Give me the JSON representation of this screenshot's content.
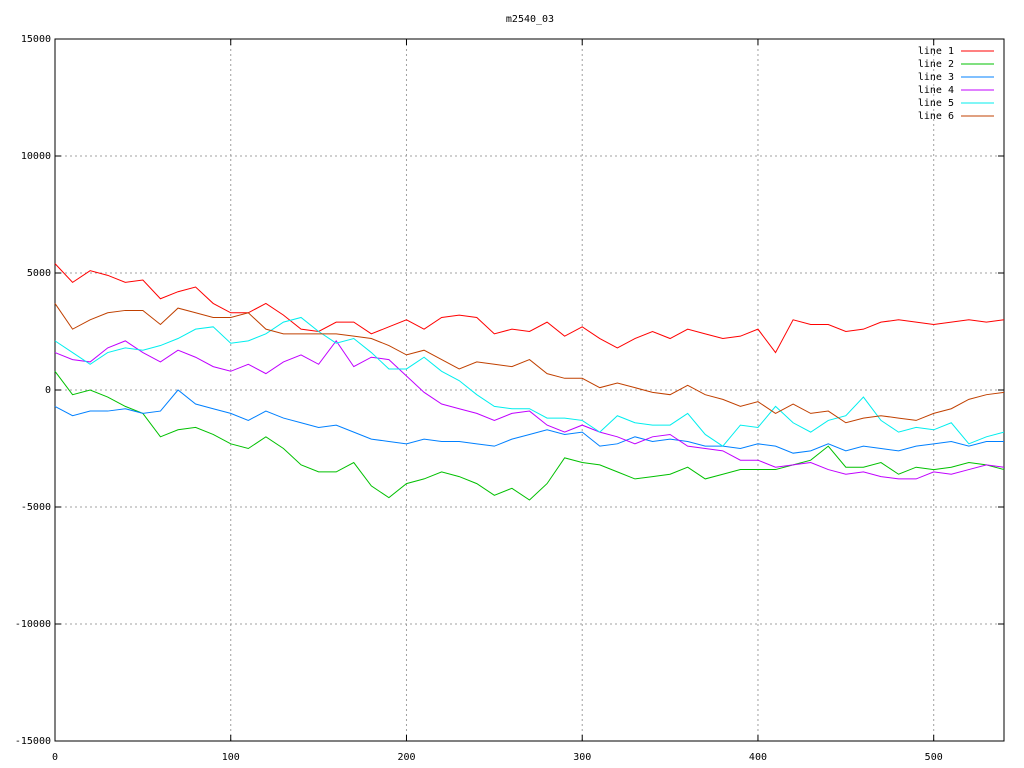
{
  "chart_data": {
    "type": "line",
    "title": "m2540_03",
    "x": [
      0,
      10,
      20,
      30,
      40,
      50,
      60,
      70,
      80,
      90,
      100,
      110,
      120,
      130,
      140,
      150,
      160,
      170,
      180,
      190,
      200,
      210,
      220,
      230,
      240,
      250,
      260,
      270,
      280,
      290,
      300,
      310,
      320,
      330,
      340,
      350,
      360,
      370,
      380,
      390,
      400,
      410,
      420,
      430,
      440,
      450,
      460,
      470,
      480,
      490,
      500,
      510,
      520,
      530,
      540
    ],
    "series": [
      {
        "name": "line 1",
        "color": "#ff0000",
        "values": [
          5400,
          4600,
          5100,
          4900,
          4600,
          4700,
          3900,
          4200,
          4400,
          3700,
          3300,
          3300,
          3700,
          3200,
          2600,
          2500,
          2900,
          2900,
          2400,
          2700,
          3000,
          2600,
          3100,
          3200,
          3100,
          2400,
          2600,
          2500,
          2900,
          2300,
          2700,
          2200,
          1800,
          2200,
          2500,
          2200,
          2600,
          2400,
          2200,
          2300,
          2600,
          1600,
          3000,
          2800,
          2800,
          2500,
          2600,
          2900,
          3000,
          2900,
          2800,
          2900,
          3000,
          2900,
          3000
        ]
      },
      {
        "name": "line 2",
        "color": "#00c000",
        "values": [
          800,
          -200,
          0,
          -300,
          -700,
          -1000,
          -2000,
          -1700,
          -1600,
          -1900,
          -2300,
          -2500,
          -2000,
          -2500,
          -3200,
          -3500,
          -3500,
          -3100,
          -4100,
          -4600,
          -4000,
          -3800,
          -3500,
          -3700,
          -4000,
          -4500,
          -4200,
          -4700,
          -4000,
          -2900,
          -3100,
          -3200,
          -3500,
          -3800,
          -3700,
          -3600,
          -3300,
          -3800,
          -3600,
          -3400,
          -3400,
          -3400,
          -3200,
          -3000,
          -2400,
          -3300,
          -3300,
          -3100,
          -3600,
          -3300,
          -3400,
          -3300,
          -3100,
          -3200,
          -3400
        ]
      },
      {
        "name": "line 3",
        "color": "#0080ff",
        "values": [
          -700,
          -1100,
          -900,
          -900,
          -800,
          -1000,
          -900,
          0,
          -600,
          -800,
          -1000,
          -1300,
          -900,
          -1200,
          -1400,
          -1600,
          -1500,
          -1800,
          -2100,
          -2200,
          -2300,
          -2100,
          -2200,
          -2200,
          -2300,
          -2400,
          -2100,
          -1900,
          -1700,
          -1900,
          -1800,
          -2400,
          -2300,
          -2000,
          -2200,
          -2100,
          -2200,
          -2400,
          -2400,
          -2500,
          -2300,
          -2400,
          -2700,
          -2600,
          -2300,
          -2600,
          -2400,
          -2500,
          -2600,
          -2400,
          -2300,
          -2200,
          -2400,
          -2200,
          -2200
        ]
      },
      {
        "name": "line 4",
        "color": "#c000ff",
        "values": [
          1600,
          1300,
          1200,
          1800,
          2100,
          1600,
          1200,
          1700,
          1400,
          1000,
          800,
          1100,
          700,
          1200,
          1500,
          1100,
          2100,
          1000,
          1400,
          1300,
          600,
          -100,
          -600,
          -800,
          -1000,
          -1300,
          -1000,
          -900,
          -1500,
          -1800,
          -1500,
          -1800,
          -2000,
          -2300,
          -2000,
          -1900,
          -2400,
          -2500,
          -2600,
          -3000,
          -3000,
          -3300,
          -3200,
          -3100,
          -3400,
          -3600,
          -3500,
          -3700,
          -3800,
          -3800,
          -3500,
          -3600,
          -3400,
          -3200,
          -3300
        ]
      },
      {
        "name": "line 5",
        "color": "#00eeee",
        "values": [
          2100,
          1600,
          1100,
          1600,
          1800,
          1700,
          1900,
          2200,
          2600,
          2700,
          2000,
          2100,
          2400,
          2900,
          3100,
          2500,
          2000,
          2200,
          1600,
          900,
          900,
          1400,
          800,
          400,
          -200,
          -700,
          -800,
          -800,
          -1200,
          -1200,
          -1300,
          -1800,
          -1100,
          -1400,
          -1500,
          -1500,
          -1000,
          -1900,
          -2400,
          -1500,
          -1600,
          -700,
          -1400,
          -1800,
          -1300,
          -1100,
          -300,
          -1300,
          -1800,
          -1600,
          -1700,
          -1400,
          -2300,
          -2000,
          -1800
        ]
      },
      {
        "name": "line 6",
        "color": "#c04000",
        "values": [
          3700,
          2600,
          3000,
          3300,
          3400,
          3400,
          2800,
          3500,
          3300,
          3100,
          3100,
          3300,
          2600,
          2400,
          2400,
          2400,
          2400,
          2300,
          2200,
          1900,
          1500,
          1700,
          1300,
          900,
          1200,
          1100,
          1000,
          1300,
          700,
          500,
          500,
          100,
          300,
          100,
          -100,
          -200,
          200,
          -200,
          -400,
          -700,
          -500,
          -1000,
          -600,
          -1000,
          -900,
          -1400,
          -1200,
          -1100,
          -1200,
          -1300,
          -1000,
          -800,
          -400,
          -200,
          -100
        ]
      }
    ],
    "xlim": [
      0,
      540
    ],
    "xticks": [
      0,
      100,
      200,
      300,
      400,
      500
    ],
    "ylim": [
      -15000,
      15000
    ],
    "yticks": [
      -15000,
      -10000,
      -5000,
      0,
      5000,
      10000,
      15000
    ],
    "grid": true,
    "legend": "top right"
  }
}
